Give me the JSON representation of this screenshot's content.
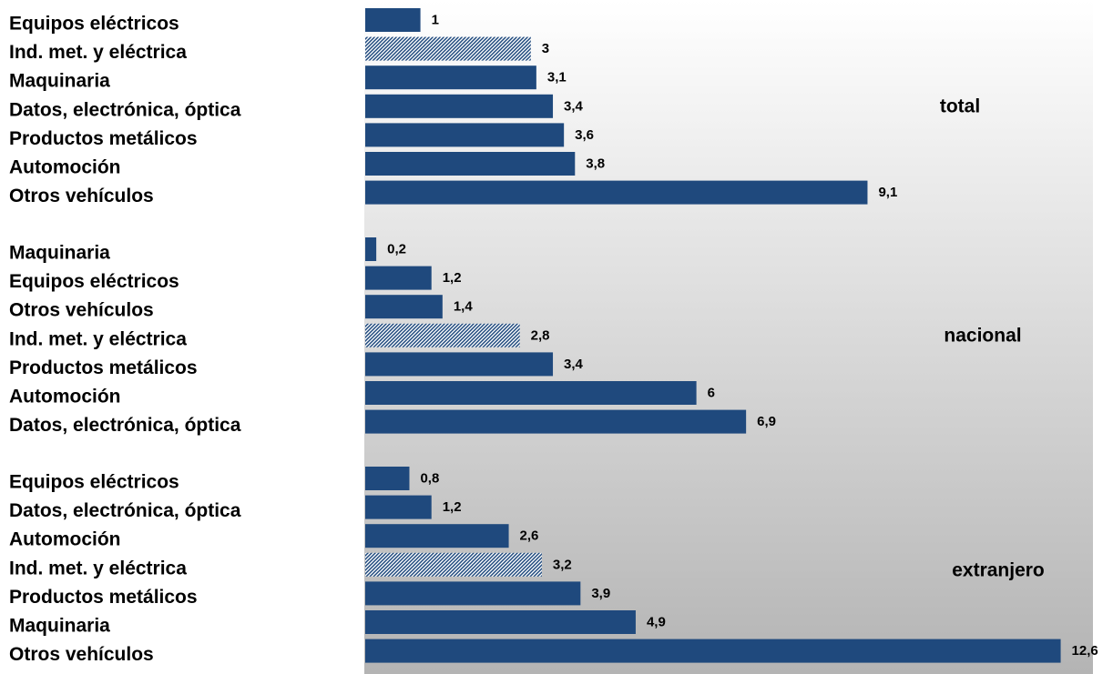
{
  "chart_data": {
    "type": "bar",
    "orientation": "horizontal",
    "grid": false,
    "legend": "none",
    "colors": {
      "bar": "#1f497d",
      "highlight_pattern": "#1f497d",
      "background_top": "#ffffff",
      "background_bottom": "#b4b4b4"
    },
    "groups": [
      {
        "name": "total",
        "bars": [
          {
            "category": "Equipos eléctricos",
            "value": 1,
            "label": "1",
            "highlight": false
          },
          {
            "category": "Ind. met. y eléctrica",
            "value": 3,
            "label": "3",
            "highlight": true
          },
          {
            "category": "Maquinaria",
            "value": 3.1,
            "label": "3,1",
            "highlight": false
          },
          {
            "category": "Datos, electrónica, óptica",
            "value": 3.4,
            "label": "3,4",
            "highlight": false
          },
          {
            "category": "Productos metálicos",
            "value": 3.6,
            "label": "3,6",
            "highlight": false
          },
          {
            "category": "Automoción",
            "value": 3.8,
            "label": "3,8",
            "highlight": false
          },
          {
            "category": "Otros vehículos",
            "value": 9.1,
            "label": "9,1",
            "highlight": false
          }
        ]
      },
      {
        "name": "nacional",
        "bars": [
          {
            "category": "Maquinaria",
            "value": 0.2,
            "label": "0,2",
            "highlight": false
          },
          {
            "category": "Equipos eléctricos",
            "value": 1.2,
            "label": "1,2",
            "highlight": false
          },
          {
            "category": "Otros vehículos",
            "value": 1.4,
            "label": "1,4",
            "highlight": false
          },
          {
            "category": "Ind. met. y eléctrica",
            "value": 2.8,
            "label": "2,8",
            "highlight": true
          },
          {
            "category": "Productos metálicos",
            "value": 3.4,
            "label": "3,4",
            "highlight": false
          },
          {
            "category": "Automoción",
            "value": 6,
            "label": "6",
            "highlight": false
          },
          {
            "category": "Datos, electrónica, óptica",
            "value": 6.9,
            "label": "6,9",
            "highlight": false
          }
        ]
      },
      {
        "name": "extranjero",
        "bars": [
          {
            "category": "Equipos eléctricos",
            "value": 0.8,
            "label": "0,8",
            "highlight": false
          },
          {
            "category": "Datos, electrónica, óptica",
            "value": 1.2,
            "label": "1,2",
            "highlight": false
          },
          {
            "category": "Automoción",
            "value": 2.6,
            "label": "2,6",
            "highlight": false
          },
          {
            "category": "Ind. met. y eléctrica",
            "value": 3.2,
            "label": "3,2",
            "highlight": true
          },
          {
            "category": "Productos metálicos",
            "value": 3.9,
            "label": "3,9",
            "highlight": false
          },
          {
            "category": "Maquinaria",
            "value": 4.9,
            "label": "4,9",
            "highlight": false
          },
          {
            "category": "Otros vehículos",
            "value": 12.6,
            "label": "12,6",
            "highlight": false
          }
        ]
      }
    ],
    "xlim": [
      0,
      12.6
    ]
  }
}
